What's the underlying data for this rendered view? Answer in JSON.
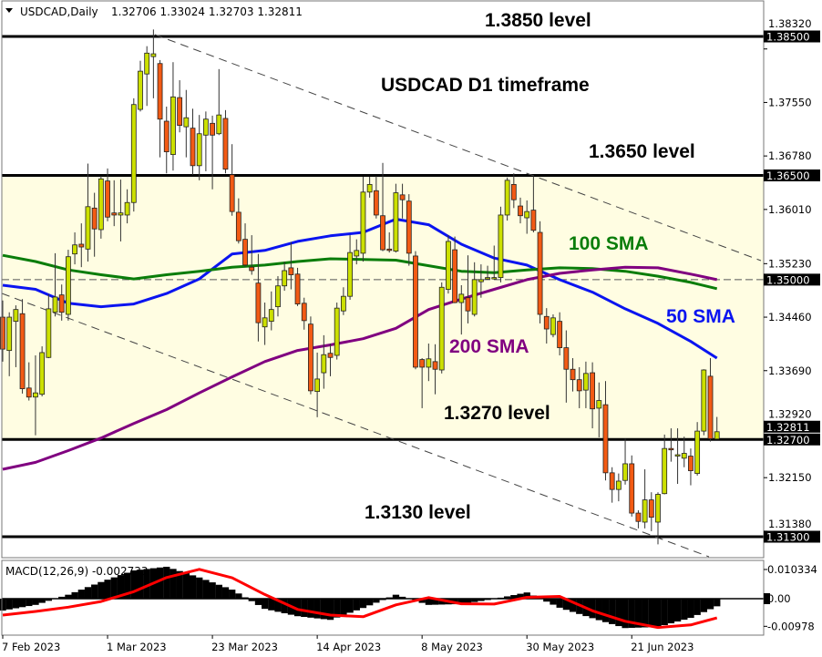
{
  "header": {
    "symbol_label": "USDCAD,Daily",
    "ohlc": "1.32706 1.33024 1.32703 1.32811"
  },
  "annotations": {
    "level_1_3850": "1.3850 level",
    "timeframe": "USDCAD D1 timeframe",
    "level_1_3650": "1.3650 level",
    "sma100": "100 SMA",
    "sma50": "50 SMA",
    "sma200": "200 SMA",
    "level_1_3270": "1.3270 level",
    "level_1_3130": "1.3130 level"
  },
  "colors": {
    "bull_candle": "#CCE000",
    "bear_candle": "#F25A14",
    "sma50": "#0A14F0",
    "sma100": "#0A7D0A",
    "sma200": "#800080",
    "zone_fill": "#FFFDE2",
    "macd_histogram": "#000000",
    "macd_signal": "#FF0000",
    "annotation_text": "#000000"
  },
  "chart_data": [
    {
      "type": "candlestick",
      "title": "USDCAD,Daily",
      "ylim": [
        1.3105,
        1.388
      ],
      "price_axis_ticks": [
        "1.38320",
        "1.37550",
        "1.36780",
        "1.36010",
        "1.35230",
        "1.34460",
        "1.33690",
        "1.32920",
        "1.32150",
        "1.31380"
      ],
      "level_badges": [
        "1.38500",
        "1.36500",
        "1.35000",
        "1.32811",
        "1.32700",
        "1.31300"
      ],
      "horizontal_levels": {
        "solid": [
          1.385,
          1.365,
          1.327,
          1.313
        ],
        "dashed": [
          1.35
        ]
      },
      "zone": [
        1.327,
        1.365
      ],
      "x_tick_labels": [
        "7 Feb 2023",
        "1 Mar 2023",
        "23 Mar 2023",
        "14 Apr 2023",
        "8 May 2023",
        "30 May 2023",
        "21 Jun 2023"
      ],
      "candles_ohlc": [
        [
          1.3446,
          1.347,
          1.3382,
          1.34
        ],
        [
          1.3398,
          1.3453,
          1.3361,
          1.3446
        ],
        [
          1.344,
          1.3463,
          1.3374,
          1.3457
        ],
        [
          1.3451,
          1.3472,
          1.3336,
          1.3343
        ],
        [
          1.3344,
          1.3381,
          1.3326,
          1.3331
        ],
        [
          1.3331,
          1.3391,
          1.3276,
          1.3337
        ],
        [
          1.3335,
          1.3404,
          1.3332,
          1.3395
        ],
        [
          1.3388,
          1.3479,
          1.3387,
          1.3458
        ],
        [
          1.3453,
          1.3538,
          1.3447,
          1.3475
        ],
        [
          1.3478,
          1.3493,
          1.3441,
          1.3453
        ],
        [
          1.345,
          1.3543,
          1.3441,
          1.3533
        ],
        [
          1.3537,
          1.3568,
          1.3522,
          1.355
        ],
        [
          1.3551,
          1.3581,
          1.3518,
          1.3547
        ],
        [
          1.3544,
          1.3667,
          1.3526,
          1.3605
        ],
        [
          1.3603,
          1.3625,
          1.3533,
          1.3573
        ],
        [
          1.3572,
          1.3649,
          1.3559,
          1.3645
        ],
        [
          1.3642,
          1.366,
          1.3584,
          1.359
        ],
        [
          1.3596,
          1.3643,
          1.3577,
          1.3593
        ],
        [
          1.3593,
          1.3644,
          1.3555,
          1.3596
        ],
        [
          1.3593,
          1.363,
          1.3581,
          1.3611
        ],
        [
          1.3611,
          1.3761,
          1.3598,
          1.3752
        ],
        [
          1.3745,
          1.3815,
          1.3742,
          1.38
        ],
        [
          1.3796,
          1.3836,
          1.375,
          1.3826
        ],
        [
          1.3821,
          1.386,
          1.3761,
          1.3825
        ],
        [
          1.3811,
          1.3816,
          1.3676,
          1.3731
        ],
        [
          1.3728,
          1.3749,
          1.3653,
          1.3684
        ],
        [
          1.368,
          1.3813,
          1.3657,
          1.3763
        ],
        [
          1.3762,
          1.3787,
          1.3712,
          1.3722
        ],
        [
          1.372,
          1.3773,
          1.3676,
          1.3733
        ],
        [
          1.3718,
          1.3746,
          1.3651,
          1.3664
        ],
        [
          1.3664,
          1.3737,
          1.3643,
          1.371
        ],
        [
          1.3708,
          1.3742,
          1.3656,
          1.3731
        ],
        [
          1.3725,
          1.3736,
          1.363,
          1.3708
        ],
        [
          1.371,
          1.3803,
          1.3708,
          1.3737
        ],
        [
          1.3732,
          1.3744,
          1.3653,
          1.3659
        ],
        [
          1.3651,
          1.3695,
          1.3592,
          1.3598
        ],
        [
          1.3597,
          1.3617,
          1.3552,
          1.3556
        ],
        [
          1.3558,
          1.3581,
          1.3518,
          1.3521
        ],
        [
          1.3518,
          1.3564,
          1.3507,
          1.3513
        ],
        [
          1.3495,
          1.3537,
          1.3411,
          1.3438
        ],
        [
          1.3432,
          1.3467,
          1.3406,
          1.3445
        ],
        [
          1.344,
          1.3483,
          1.3427,
          1.3457
        ],
        [
          1.3461,
          1.3505,
          1.3447,
          1.3491
        ],
        [
          1.3491,
          1.3526,
          1.3484,
          1.3513
        ],
        [
          1.3517,
          1.3554,
          1.3486,
          1.3507
        ],
        [
          1.3508,
          1.3517,
          1.3462,
          1.3465
        ],
        [
          1.3466,
          1.3474,
          1.3428,
          1.3441
        ],
        [
          1.3436,
          1.3447,
          1.3335,
          1.334
        ],
        [
          1.3339,
          1.3395,
          1.3302,
          1.3357
        ],
        [
          1.3366,
          1.342,
          1.3343,
          1.3392
        ],
        [
          1.3394,
          1.3408,
          1.3361,
          1.3388
        ],
        [
          1.3391,
          1.3467,
          1.3385,
          1.3459
        ],
        [
          1.3455,
          1.3489,
          1.3449,
          1.3476
        ],
        [
          1.3476,
          1.3564,
          1.3471,
          1.3539
        ],
        [
          1.3534,
          1.3558,
          1.3522,
          1.3542
        ],
        [
          1.3538,
          1.3648,
          1.3526,
          1.3626
        ],
        [
          1.3626,
          1.3648,
          1.3618,
          1.3637
        ],
        [
          1.3628,
          1.3649,
          1.3588,
          1.3593
        ],
        [
          1.3592,
          1.3668,
          1.3541,
          1.3543
        ],
        [
          1.3544,
          1.3568,
          1.3539,
          1.3542
        ],
        [
          1.3541,
          1.3638,
          1.3539,
          1.3625
        ],
        [
          1.3622,
          1.3638,
          1.3588,
          1.3615
        ],
        [
          1.3613,
          1.3623,
          1.352,
          1.3538
        ],
        [
          1.3534,
          1.3541,
          1.3371,
          1.3374
        ],
        [
          1.3385,
          1.3387,
          1.3315,
          1.3374
        ],
        [
          1.3374,
          1.3408,
          1.3354,
          1.3386
        ],
        [
          1.3382,
          1.3407,
          1.3335,
          1.3371
        ],
        [
          1.337,
          1.3496,
          1.3365,
          1.3489
        ],
        [
          1.3486,
          1.3564,
          1.348,
          1.3555
        ],
        [
          1.3543,
          1.3562,
          1.3466,
          1.3467
        ],
        [
          1.3467,
          1.3492,
          1.3421,
          1.3479
        ],
        [
          1.3474,
          1.3535,
          1.3437,
          1.3455
        ],
        [
          1.345,
          1.3525,
          1.3447,
          1.35
        ],
        [
          1.3497,
          1.3522,
          1.3474,
          1.35
        ],
        [
          1.3501,
          1.352,
          1.35,
          1.3503
        ],
        [
          1.3501,
          1.3549,
          1.35,
          1.3503
        ],
        [
          1.3503,
          1.3605,
          1.3496,
          1.3593
        ],
        [
          1.3593,
          1.3647,
          1.3585,
          1.3643
        ],
        [
          1.3637,
          1.3653,
          1.3603,
          1.3615
        ],
        [
          1.3606,
          1.3618,
          1.3581,
          1.3592
        ],
        [
          1.3589,
          1.3614,
          1.3566,
          1.3598
        ],
        [
          1.36,
          1.3648,
          1.3568,
          1.3571
        ],
        [
          1.3568,
          1.3584,
          1.3437,
          1.345
        ],
        [
          1.3447,
          1.3459,
          1.3408,
          1.3429
        ],
        [
          1.3421,
          1.345,
          1.3417,
          1.3445
        ],
        [
          1.344,
          1.3453,
          1.3391,
          1.3402
        ],
        [
          1.3402,
          1.3427,
          1.3323,
          1.3371
        ],
        [
          1.3371,
          1.3387,
          1.3339,
          1.3356
        ],
        [
          1.3356,
          1.3374,
          1.3315,
          1.334
        ],
        [
          1.3341,
          1.3382,
          1.3315,
          1.3365
        ],
        [
          1.3366,
          1.3381,
          1.3286,
          1.3314
        ],
        [
          1.3315,
          1.3352,
          1.3273,
          1.3326
        ],
        [
          1.332,
          1.3354,
          1.3211,
          1.3222
        ],
        [
          1.3222,
          1.323,
          1.3179,
          1.3198
        ],
        [
          1.3198,
          1.3221,
          1.3181,
          1.321
        ],
        [
          1.3211,
          1.3271,
          1.3205,
          1.3235
        ],
        [
          1.3235,
          1.3247,
          1.3159,
          1.3164
        ],
        [
          1.3164,
          1.3168,
          1.3142,
          1.3152
        ],
        [
          1.3151,
          1.3227,
          1.3142,
          1.3183
        ],
        [
          1.3183,
          1.3194,
          1.3138,
          1.3158
        ],
        [
          1.3151,
          1.3194,
          1.3119,
          1.3191
        ],
        [
          1.3192,
          1.3277,
          1.3191,
          1.3257
        ],
        [
          1.3257,
          1.3286,
          1.3238,
          1.3255
        ],
        [
          1.3247,
          1.3286,
          1.3206,
          1.3248
        ],
        [
          1.3243,
          1.3274,
          1.323,
          1.325
        ],
        [
          1.3246,
          1.3257,
          1.3204,
          1.3225
        ],
        [
          1.3221,
          1.3295,
          1.3218,
          1.3282
        ],
        [
          1.3282,
          1.3371,
          1.3276,
          1.337
        ],
        [
          1.3361,
          1.3387,
          1.3267,
          1.3271
        ],
        [
          1.32706,
          1.33024,
          1.32703,
          1.32811
        ]
      ],
      "series": [
        {
          "name": "50 SMA",
          "values_every_5_bars": [
            1.3492,
            1.3486,
            1.3466,
            1.3461,
            1.3465,
            1.348,
            1.3501,
            1.3537,
            1.3542,
            1.3555,
            1.3563,
            1.3568,
            1.3587,
            1.3579,
            1.3551,
            1.3531,
            1.3521,
            1.35,
            1.3482,
            1.3458,
            1.3437,
            1.3411,
            1.3387
          ]
        },
        {
          "name": "100 SMA",
          "values_every_5_bars": [
            1.3535,
            1.3526,
            1.3514,
            1.3507,
            1.3501,
            1.3507,
            1.3512,
            1.3518,
            1.3521,
            1.3526,
            1.353,
            1.3529,
            1.3528,
            1.352,
            1.3512,
            1.351,
            1.3514,
            1.3517,
            1.3516,
            1.3512,
            1.3505,
            1.3496,
            1.3487
          ]
        },
        {
          "name": "200 SMA",
          "values_every_5_bars": [
            1.3227,
            1.3237,
            1.3254,
            1.3272,
            1.3293,
            1.3313,
            1.3337,
            1.336,
            1.3382,
            1.3398,
            1.3406,
            1.3415,
            1.343,
            1.3457,
            1.3472,
            1.3486,
            1.35,
            1.3509,
            1.3514,
            1.3518,
            1.3517,
            1.3508,
            1.35
          ]
        }
      ]
    },
    {
      "type": "bar+line",
      "title": "MACD(12,26,9)",
      "current_value": "-0.002733",
      "label": "MACD(12,26,9) -0.002733",
      "axis_ticks": [
        "0.010334",
        "0.00",
        "-0.00978"
      ],
      "ylim": [
        -0.013,
        0.014
      ],
      "macd_every_5_bars": [
        -0.0042,
        -0.0022,
        0.0014,
        0.0059,
        0.01,
        0.0113,
        0.0075,
        0.0032,
        -0.0036,
        -0.0062,
        -0.0075,
        -0.0033,
        0.0014,
        -0.0022,
        -0.0019,
        -0.0001,
        0.0022,
        -0.0032,
        -0.0069,
        -0.0104,
        -0.01,
        -0.0068,
        -0.0027
      ],
      "signal_every_5_bars": [
        -0.0058,
        -0.0045,
        -0.003,
        -0.001,
        0.0025,
        0.0075,
        0.0104,
        0.0074,
        0.0015,
        -0.0038,
        -0.0058,
        -0.0064,
        -0.0022,
        0.0004,
        -0.0018,
        -0.0019,
        0.0005,
        0.0008,
        -0.0043,
        -0.008,
        -0.0102,
        -0.0093,
        -0.0068
      ]
    }
  ]
}
